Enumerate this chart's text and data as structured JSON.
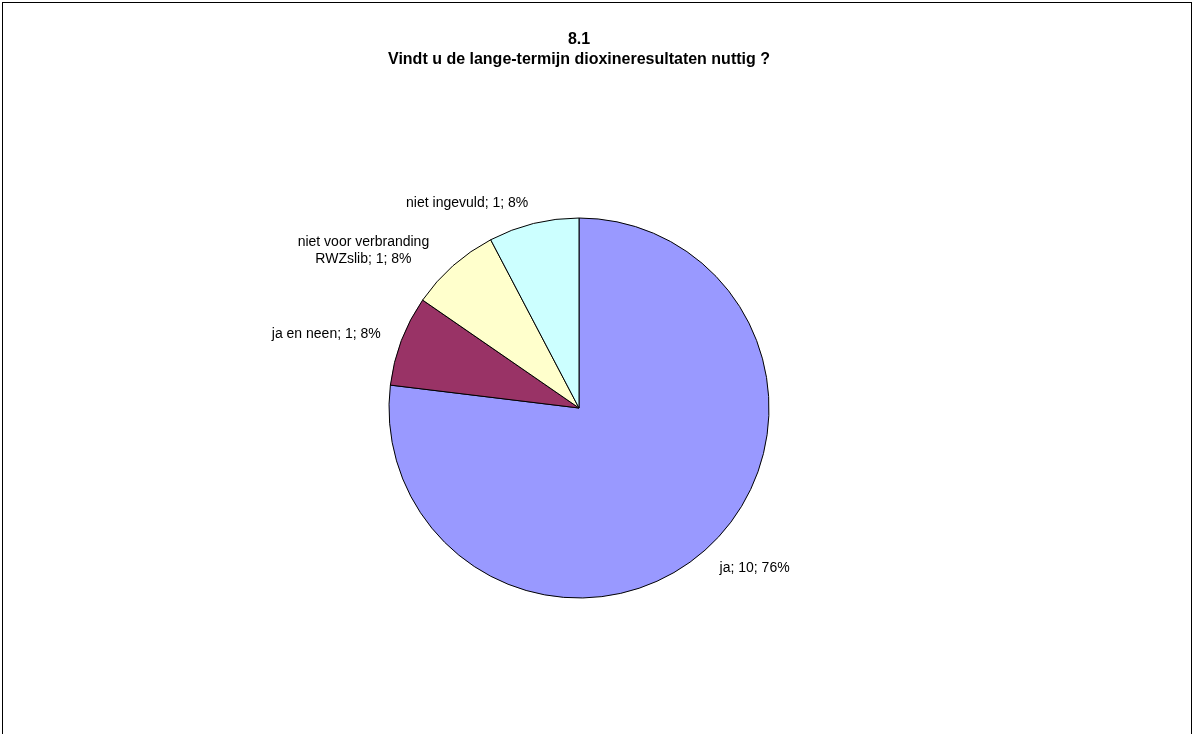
{
  "chart_data": {
    "type": "pie",
    "title": "8.1\nVindt u de lange-termijn dioxineresultaten nuttig ?",
    "categories": [
      "ja",
      "ja en neen",
      "niet voor verbranding RWZslib",
      "niet ingevuld"
    ],
    "values": [
      10,
      1,
      1,
      1
    ],
    "colors": [
      "#9999ff",
      "#993366",
      "#ffffcc",
      "#ccffff"
    ],
    "value_labels": [
      "10; 76%",
      "1; 8%",
      "1; 8%",
      "1; 8%"
    ]
  }
}
